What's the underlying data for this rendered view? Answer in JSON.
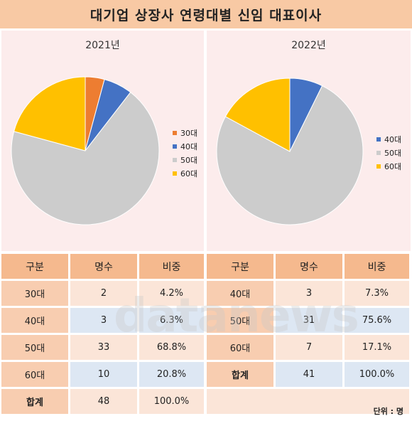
{
  "title": "대기업 상장사 연령대별 신임 대표이사",
  "unit_note": "단위 : 명",
  "watermark": "datanews",
  "chart_data": [
    {
      "type": "pie",
      "title": "2021년",
      "categories": [
        "30대",
        "40대",
        "50대",
        "60대"
      ],
      "values": [
        4.2,
        6.3,
        68.8,
        20.8
      ],
      "colors": [
        "#ed7d31",
        "#4472c4",
        "#cccccc",
        "#ffc000"
      ],
      "legend_position": "right"
    },
    {
      "type": "pie",
      "title": "2022년",
      "categories": [
        "40대",
        "50대",
        "60대"
      ],
      "values": [
        7.3,
        75.6,
        17.1
      ],
      "colors": [
        "#4472c4",
        "#cccccc",
        "#ffc000"
      ],
      "legend_position": "right"
    }
  ],
  "tables": {
    "headers": [
      "구분",
      "명수",
      "비중"
    ],
    "left": [
      {
        "label": "30대",
        "count": "2",
        "share": "4.2%"
      },
      {
        "label": "40대",
        "count": "3",
        "share": "6.3%"
      },
      {
        "label": "50대",
        "count": "33",
        "share": "68.8%"
      },
      {
        "label": "60대",
        "count": "10",
        "share": "20.8%"
      },
      {
        "label": "합계",
        "count": "48",
        "share": "100.0%"
      }
    ],
    "right": [
      {
        "label": "40대",
        "count": "3",
        "share": "7.3%"
      },
      {
        "label": "50대",
        "count": "31",
        "share": "75.6%"
      },
      {
        "label": "60대",
        "count": "7",
        "share": "17.1%"
      },
      {
        "label": "합계",
        "count": "41",
        "share": "100.0%"
      }
    ]
  }
}
